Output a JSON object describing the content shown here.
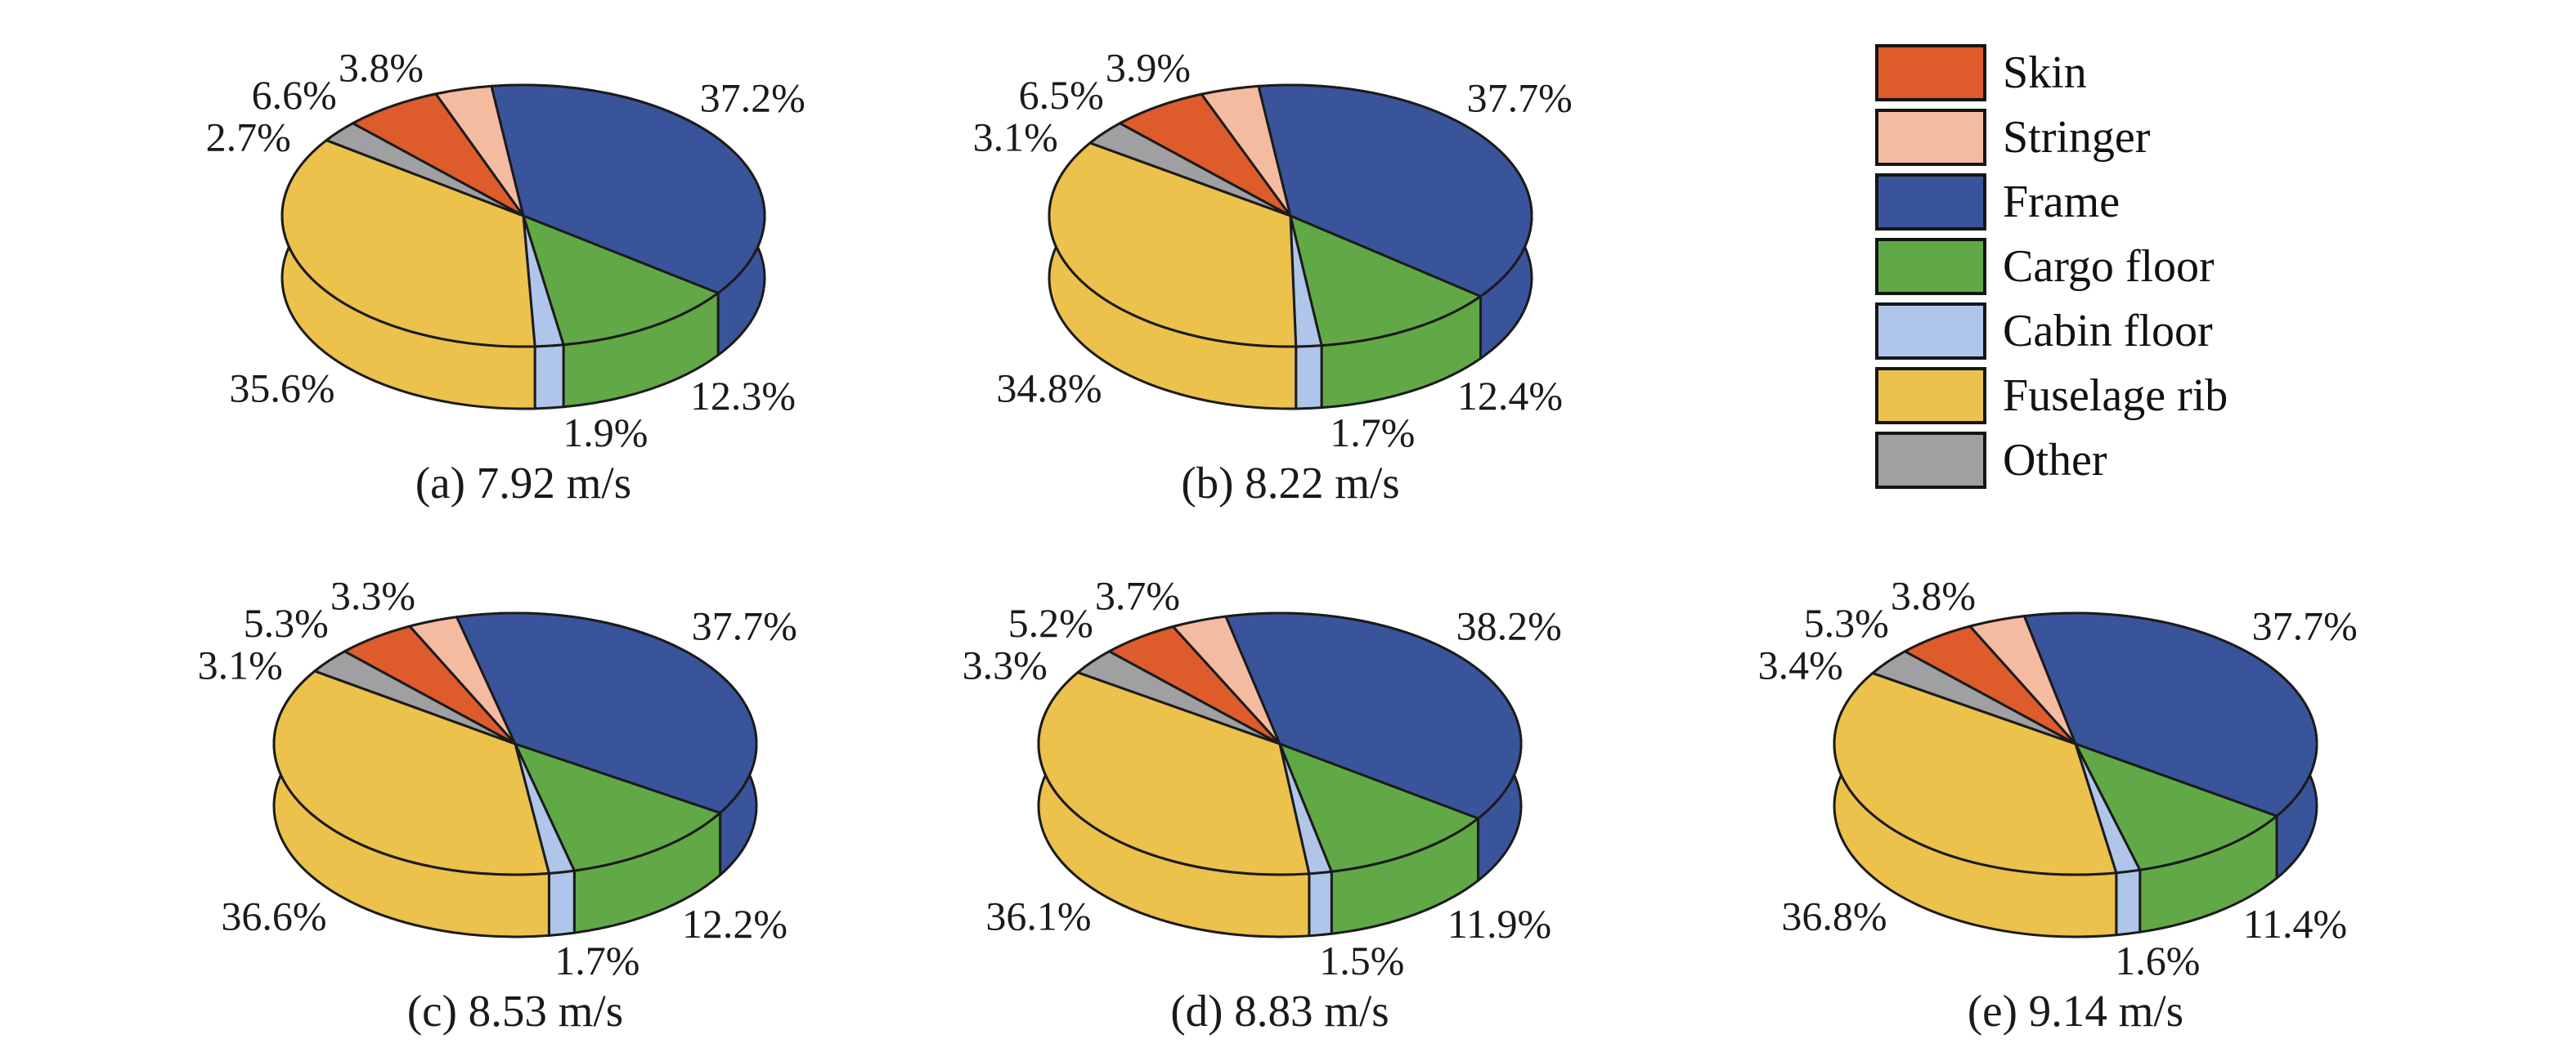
{
  "figure": {
    "background": "#ffffff",
    "units": "percent"
  },
  "legend": {
    "position": "top-right",
    "items": [
      {
        "label": "Skin",
        "color": "#DE5B2C"
      },
      {
        "label": "Stringer",
        "color": "#F4BBA1"
      },
      {
        "label": "Frame",
        "color": "#3A549B"
      },
      {
        "label": "Cargo floor",
        "color": "#61A946"
      },
      {
        "label": "Cabin floor",
        "color": "#AFC6EA"
      },
      {
        "label": "Fuselage rib",
        "color": "#ECC14C"
      },
      {
        "label": "Other",
        "color": "#A0A0A2"
      }
    ]
  },
  "chart_data": {
    "type": "pie",
    "style": "3d",
    "grid": false,
    "categories": [
      "Skin",
      "Stringer",
      "Frame",
      "Cargo floor",
      "Cabin floor",
      "Fuselage rib",
      "Other"
    ],
    "colors": [
      "#DE5B2C",
      "#F4BBA1",
      "#3A549B",
      "#61A946",
      "#AFC6EA",
      "#ECC14C",
      "#A0A0A2"
    ],
    "charts": [
      {
        "caption": "(a) 7.92 m/s",
        "values": [
          6.6,
          3.8,
          37.2,
          12.3,
          1.9,
          35.6,
          2.7
        ],
        "labels": [
          "6.6%",
          "3.8%",
          "37.2%",
          "12.3%",
          "1.9%",
          "35.6%",
          "2.7%"
        ]
      },
      {
        "caption": "(b) 8.22 m/s",
        "values": [
          6.5,
          3.9,
          37.7,
          12.4,
          1.7,
          34.8,
          3.1
        ],
        "labels": [
          "6.5%",
          "3.9%",
          "37.7%",
          "12.4%",
          "1.7%",
          "34.8%",
          "3.1%"
        ]
      },
      {
        "caption": "(c) 8.53 m/s",
        "values": [
          5.3,
          3.3,
          37.7,
          12.2,
          1.7,
          36.6,
          3.1
        ],
        "labels": [
          "5.3%",
          "3.3%",
          "37.7%",
          "12.2%",
          "1.7%",
          "36.6%",
          "3.1%"
        ]
      },
      {
        "caption": "(d) 8.83 m/s",
        "values": [
          5.2,
          3.7,
          38.2,
          11.9,
          1.5,
          36.1,
          3.3
        ],
        "labels": [
          "5.2%",
          "3.7%",
          "38.2%",
          "11.9%",
          "1.5%",
          "36.1%",
          "3.3%"
        ]
      },
      {
        "caption": "(e) 9.14 m/s",
        "values": [
          5.3,
          3.8,
          37.7,
          11.4,
          1.6,
          36.8,
          3.4
        ],
        "labels": [
          "5.3%",
          "3.8%",
          "37.7%",
          "11.4%",
          "1.6%",
          "36.8%",
          "3.4%"
        ]
      }
    ]
  }
}
